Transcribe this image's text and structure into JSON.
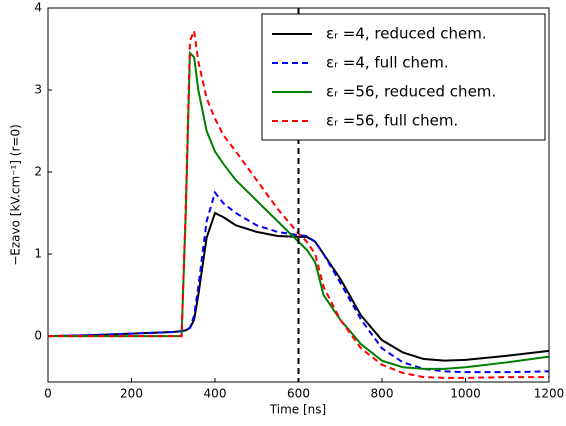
{
  "chart_data": {
    "type": "line",
    "xlabel": "Time [ns]",
    "ylabel": "−Ezavo [kV.cm⁻¹] (r=0)",
    "x": [
      0,
      100,
      200,
      300,
      320,
      330,
      340,
      350,
      360,
      380,
      400,
      420,
      450,
      500,
      550,
      600,
      620,
      640,
      660,
      700,
      750,
      800,
      850,
      900,
      950,
      1000,
      1100,
      1200
    ],
    "series": [
      {
        "name": "εᵣ =4, reduced chem.",
        "color": "#000000",
        "linestyle": "solid",
        "values": [
          0,
          0.01,
          0.03,
          0.05,
          0.06,
          0.07,
          0.1,
          0.2,
          0.5,
          1.2,
          1.5,
          1.45,
          1.35,
          1.27,
          1.22,
          1.21,
          1.21,
          1.15,
          1.0,
          0.7,
          0.25,
          -0.05,
          -0.2,
          -0.28,
          -0.3,
          -0.29,
          -0.24,
          -0.18
        ]
      },
      {
        "name": "εᵣ =4, full chem.",
        "color": "#0000ff",
        "linestyle": "dashed",
        "values": [
          0,
          0.01,
          0.03,
          0.05,
          0.06,
          0.07,
          0.1,
          0.25,
          0.6,
          1.4,
          1.75,
          1.62,
          1.5,
          1.35,
          1.27,
          1.23,
          1.22,
          1.15,
          1.0,
          0.65,
          0.2,
          -0.15,
          -0.32,
          -0.4,
          -0.43,
          -0.44,
          -0.44,
          -0.43
        ]
      },
      {
        "name": "εᵣ =56, reduced chem.",
        "color": "#008000",
        "linestyle": "solid",
        "values": [
          0,
          0,
          0,
          0,
          0,
          1.5,
          3.45,
          3.4,
          3.0,
          2.5,
          2.25,
          2.1,
          1.9,
          1.65,
          1.4,
          1.15,
          1.05,
          0.9,
          0.5,
          0.2,
          -0.1,
          -0.3,
          -0.38,
          -0.4,
          -0.4,
          -0.38,
          -0.32,
          -0.25
        ]
      },
      {
        "name": "εᵣ =56, full chem.",
        "color": "#ff0000",
        "linestyle": "dashed",
        "values": [
          0,
          0,
          0,
          0,
          0,
          1.6,
          3.6,
          3.72,
          3.35,
          2.9,
          2.65,
          2.45,
          2.25,
          1.9,
          1.55,
          1.25,
          1.15,
          1.0,
          0.6,
          0.2,
          -0.15,
          -0.35,
          -0.45,
          -0.5,
          -0.51,
          -0.51,
          -0.5,
          -0.5
        ]
      }
    ],
    "xlim": [
      0,
      1200
    ],
    "xticks": [
      0,
      200,
      400,
      600,
      800,
      1000,
      1200
    ],
    "ylim": [
      -0.56,
      4
    ],
    "yticks": [
      0,
      1,
      2,
      3,
      4
    ],
    "vline": {
      "x": 600,
      "color": "#000000",
      "linestyle": "dashed"
    },
    "legend": "upper right",
    "grid": false
  }
}
